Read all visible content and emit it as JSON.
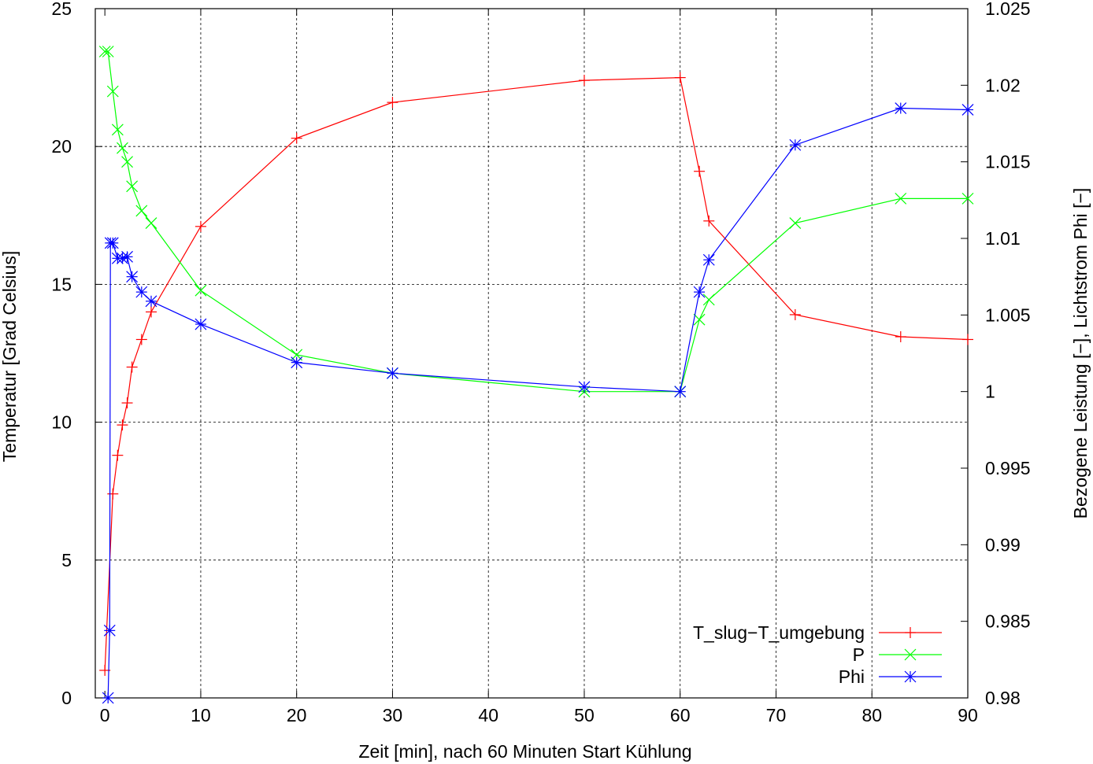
{
  "chart_data": {
    "type": "line",
    "xlabel": "Zeit [min], nach 60 Minuten Start Kühlung",
    "ylabel_left": "Temperatur [Grad Celsius]",
    "ylabel_right": "Bezogene Leistung [−], Lichtstrom Phi [−]",
    "xlim": [
      -1,
      90
    ],
    "ylim_left": [
      0,
      25
    ],
    "ylim_right": [
      0.98,
      1.025
    ],
    "x_ticks": [
      "0",
      "10",
      "20",
      "30",
      "40",
      "50",
      "60",
      "70",
      "80",
      "90"
    ],
    "y_left_ticks": [
      "0",
      "5",
      "10",
      "15",
      "20",
      "25"
    ],
    "y_right_ticks": [
      "0.98",
      "0.985",
      "0.99",
      "0.995",
      "1",
      "1.005",
      "1.01",
      "1.015",
      "1.02",
      "1.025"
    ],
    "grid": true,
    "legend_position": "bottom-right",
    "series": [
      {
        "name": "T_slug−T_umgebung",
        "axis": "left",
        "color": "#ff0000",
        "marker": "plus",
        "x": [
          0,
          0.83,
          1.33,
          1.83,
          2.33,
          2.83,
          3.83,
          4.83,
          10,
          20,
          30,
          50,
          60,
          62,
          63,
          72,
          83,
          90
        ],
        "y": [
          1.0,
          7.4,
          8.8,
          9.9,
          10.7,
          12.0,
          13.0,
          14.0,
          17.1,
          20.3,
          21.6,
          22.4,
          22.5,
          19.1,
          17.3,
          13.9,
          13.1,
          13.0
        ]
      },
      {
        "name": "P",
        "axis": "right",
        "color": "#00ff00",
        "marker": "cross",
        "x": [
          0,
          0.33,
          0.83,
          1.33,
          1.83,
          2.33,
          2.83,
          3.83,
          4.83,
          10,
          20,
          30,
          50,
          60,
          62,
          63,
          72,
          83,
          90
        ],
        "y": [
          1.0222,
          1.0222,
          1.0196,
          1.0171,
          1.0159,
          1.015,
          1.0134,
          1.0118,
          1.011,
          1.0066,
          1.0024,
          1.0012,
          1.0,
          1.0,
          1.0047,
          1.006,
          1.011,
          1.0126,
          1.0126
        ]
      },
      {
        "name": "Phi",
        "axis": "right",
        "color": "#0000ff",
        "marker": "star",
        "x": [
          0.33,
          0.5,
          0.58,
          0.83,
          1.33,
          1.83,
          2.33,
          2.83,
          3.83,
          4.83,
          10,
          20,
          30,
          50,
          60,
          62,
          63,
          72,
          83,
          90
        ],
        "y": [
          0.98,
          0.9844,
          1.0097,
          1.0097,
          1.0087,
          1.0087,
          1.0088,
          1.0075,
          1.0065,
          1.0059,
          1.0044,
          1.0019,
          1.0012,
          1.0003,
          1.0,
          1.0065,
          1.0086,
          1.0161,
          1.0185,
          1.0184
        ]
      }
    ]
  }
}
